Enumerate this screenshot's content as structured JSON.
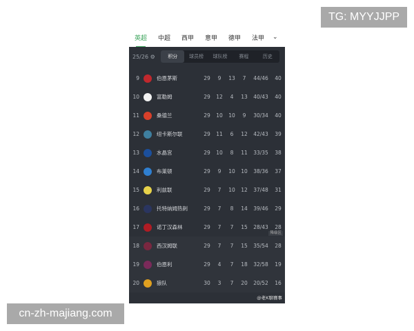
{
  "watermarks": {
    "top_right": "TG: MYYJJPP",
    "bottom_left": "cn-zh-majiang.com",
    "weibo": "@老K聊赛事"
  },
  "league_tabs": [
    {
      "label": "英超",
      "active": true
    },
    {
      "label": "中超"
    },
    {
      "label": "西甲"
    },
    {
      "label": "意甲"
    },
    {
      "label": "德甲"
    },
    {
      "label": "法甲"
    }
  ],
  "more_icon": "chevron-down-icon",
  "season": "25/26",
  "view_tabs": [
    {
      "label": "积分",
      "active": true
    },
    {
      "label": "球员榜"
    },
    {
      "label": "球队榜"
    },
    {
      "label": "赛程"
    },
    {
      "label": "历史"
    }
  ],
  "relegation_label": "降级区",
  "accent": "#3aa35a",
  "rows": [
    {
      "rank": "9",
      "team": "伯恩茅斯",
      "p": "29",
      "w": "9",
      "d": "13",
      "l": "7",
      "goals": "44/46",
      "pts": "40",
      "color": "#c0282d"
    },
    {
      "rank": "10",
      "team": "富勒姆",
      "p": "29",
      "w": "12",
      "d": "4",
      "l": "13",
      "goals": "40/43",
      "pts": "40",
      "color": "#f2f2f2"
    },
    {
      "rank": "11",
      "team": "桑德兰",
      "p": "29",
      "w": "10",
      "d": "10",
      "l": "9",
      "goals": "30/34",
      "pts": "40",
      "color": "#d8402a"
    },
    {
      "rank": "12",
      "team": "纽卡斯尔联",
      "p": "29",
      "w": "11",
      "d": "6",
      "l": "12",
      "goals": "42/43",
      "pts": "39",
      "color": "#3f7f9f"
    },
    {
      "rank": "13",
      "team": "水晶宫",
      "p": "29",
      "w": "10",
      "d": "8",
      "l": "11",
      "goals": "33/35",
      "pts": "38",
      "color": "#1b4f9c"
    },
    {
      "rank": "14",
      "team": "布莱顿",
      "p": "29",
      "w": "9",
      "d": "10",
      "l": "10",
      "goals": "38/36",
      "pts": "37",
      "color": "#2f7fd0"
    },
    {
      "rank": "15",
      "team": "利兹联",
      "p": "29",
      "w": "7",
      "d": "10",
      "l": "12",
      "goals": "37/48",
      "pts": "31",
      "color": "#e7d24a"
    },
    {
      "rank": "16",
      "team": "托特纳姆热刺",
      "p": "29",
      "w": "7",
      "d": "8",
      "l": "14",
      "goals": "39/46",
      "pts": "29",
      "color": "#2a3560"
    },
    {
      "rank": "17",
      "team": "诺丁汉森林",
      "p": "29",
      "w": "7",
      "d": "7",
      "l": "15",
      "goals": "28/43",
      "pts": "28",
      "color": "#b01c24"
    },
    {
      "rank": "18",
      "team": "西汉姆联",
      "p": "29",
      "w": "7",
      "d": "7",
      "l": "15",
      "goals": "35/54",
      "pts": "28",
      "color": "#7a2740"
    },
    {
      "rank": "19",
      "team": "伯恩利",
      "p": "29",
      "w": "4",
      "d": "7",
      "l": "18",
      "goals": "32/58",
      "pts": "19",
      "color": "#7a2a5a"
    },
    {
      "rank": "20",
      "team": "狼队",
      "p": "30",
      "w": "3",
      "d": "7",
      "l": "20",
      "goals": "20/52",
      "pts": "16",
      "color": "#e0a020"
    }
  ]
}
